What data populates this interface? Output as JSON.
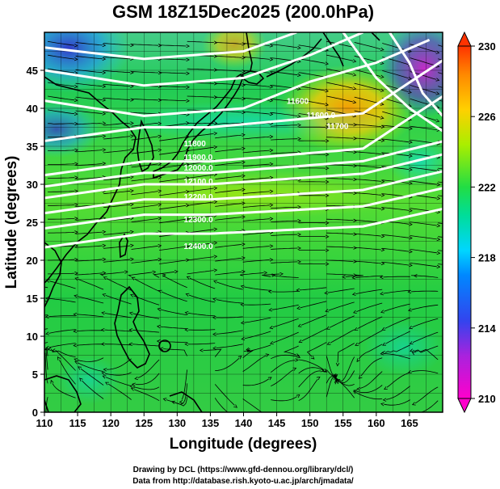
{
  "title": "GSM 18Z15Dec2025 (200.0hPa)",
  "x_axis": {
    "label": "Longitude (degrees)",
    "range": [
      110,
      170
    ],
    "ticks": [
      110,
      115,
      120,
      125,
      130,
      135,
      140,
      145,
      150,
      155,
      160,
      165
    ]
  },
  "y_axis": {
    "label": "Latitude  (degrees)",
    "range": [
      0,
      50
    ],
    "ticks": [
      0,
      5,
      10,
      15,
      20,
      25,
      30,
      35,
      40,
      45
    ]
  },
  "colorbar": {
    "range": [
      210,
      230
    ],
    "ticks": [
      210,
      214,
      218,
      222,
      226,
      230
    ],
    "colors": [
      "#ff00cc",
      "#3344ee",
      "#00d6ff",
      "#22dd44",
      "#aaee00",
      "#ffd000",
      "#ff4400"
    ]
  },
  "contours": [
    {
      "label": "11600",
      "lat": 37.5
    },
    {
      "label": "11700",
      "lat": 33.0
    },
    {
      "label": "11800",
      "lat": 31.5
    },
    {
      "label": "11900",
      "lat": 30.0
    },
    {
      "label": "12000",
      "lat": 28.0
    },
    {
      "label": "12100",
      "lat": 26.0
    },
    {
      "label": "12200",
      "lat": 23.5
    }
  ],
  "contour_labels": [
    {
      "text": "11600",
      "lon": 146.5,
      "lat": 40.6
    },
    {
      "text": "11600.0",
      "lon": 149.5,
      "lat": 38.7
    },
    {
      "text": "11700",
      "lon": 152.5,
      "lat": 37.3
    },
    {
      "text": "11800",
      "lon": 131.0,
      "lat": 35.0
    },
    {
      "text": "11900.0",
      "lon": 131.0,
      "lat": 33.2
    },
    {
      "text": "12000.0",
      "lon": 131.0,
      "lat": 31.8
    },
    {
      "text": "12100.0",
      "lon": 131.0,
      "lat": 30.0
    },
    {
      "text": "12200.0",
      "lon": 131.0,
      "lat": 28.0
    },
    {
      "text": "12300.0",
      "lon": 131.0,
      "lat": 25.0
    },
    {
      "text": "12400.0",
      "lon": 131.0,
      "lat": 21.5
    }
  ],
  "credits": {
    "line1": "Drawing by DCL (https://www.gfd-dennou.org/library/dcl/)",
    "line2": "Data from http://database.rish.kyoto-u.ac.jp/arch/jmadata/"
  }
}
